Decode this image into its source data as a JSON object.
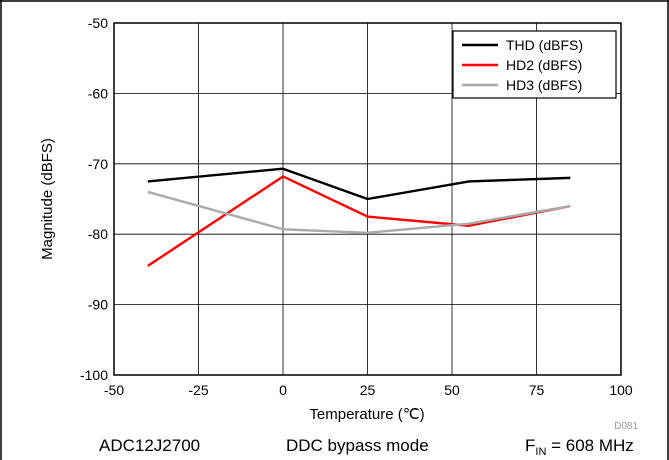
{
  "chart_data": {
    "type": "line",
    "title": "",
    "xlabel": "Temperature (℃)",
    "ylabel": "Magnitude (dBFS)",
    "xlim": [
      -50,
      100
    ],
    "ylim": [
      -100,
      -50
    ],
    "xticks": [
      -50,
      -25,
      0,
      25,
      50,
      75,
      100
    ],
    "yticks": [
      -100,
      -90,
      -80,
      -70,
      -60,
      -50
    ],
    "x_tick_labels": [
      "-50",
      "-25",
      "0",
      "25",
      "50",
      "75",
      "100"
    ],
    "y_tick_labels": [
      "-100",
      "-90",
      "-80",
      "-70",
      "-60",
      "-50"
    ],
    "grid": true,
    "legend_position": "top-right",
    "series": [
      {
        "name": "THD (dBFS)",
        "color": "#000000",
        "x": [
          -40,
          0,
          25,
          55,
          85
        ],
        "y": [
          -72.5,
          -70.7,
          -75.0,
          -72.5,
          -72.0
        ]
      },
      {
        "name": "HD2 (dBFS)",
        "color": "#ff0000",
        "x": [
          -40,
          0,
          25,
          55,
          85
        ],
        "y": [
          -84.5,
          -71.8,
          -77.5,
          -78.8,
          -76.0
        ]
      },
      {
        "name": "HD3 (dBFS)",
        "color": "#aaaaaa",
        "x": [
          -40,
          0,
          25,
          55,
          85
        ],
        "y": [
          -74.0,
          -79.3,
          -79.8,
          -78.5,
          -76.0
        ]
      }
    ],
    "annotation": "D081"
  },
  "footer": {
    "device": "ADC12J2700",
    "mode": "DDC bypass mode",
    "fin_prefix": "F",
    "fin_sub": "IN",
    "fin_value": " = 608 MHz"
  }
}
